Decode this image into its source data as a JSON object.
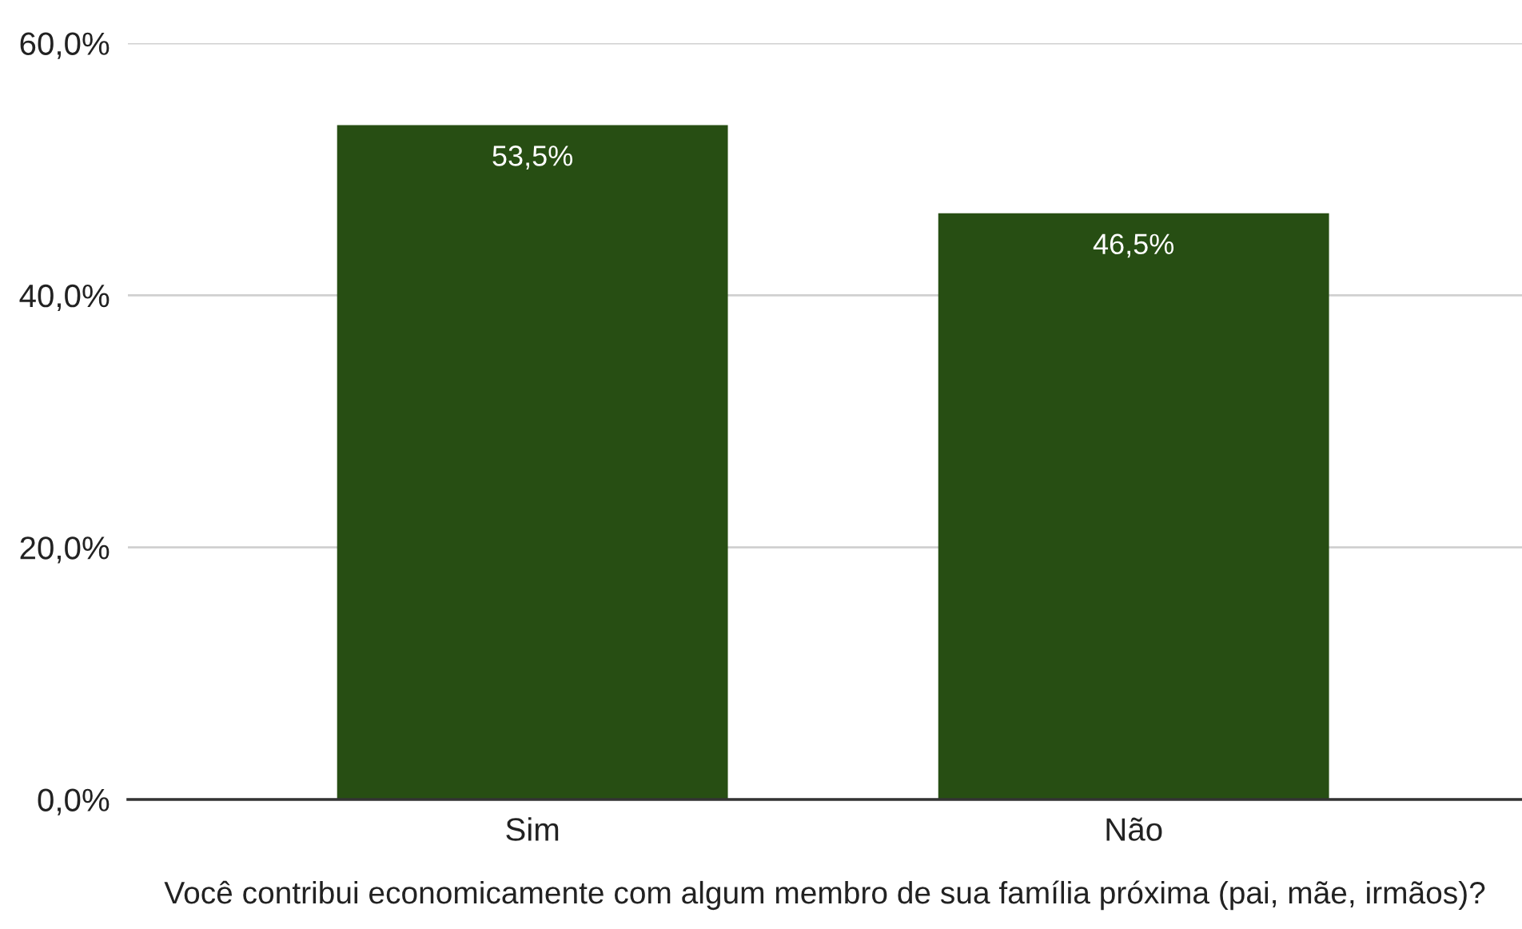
{
  "chart_data": {
    "type": "bar",
    "xlabel": "Você contribui economicamente com algum membro de sua família próxima (pai, mãe, irmãos)?",
    "categories": [
      "Sim",
      "Não"
    ],
    "values": [
      53.5,
      46.5
    ],
    "value_labels": [
      "53,5%",
      "46,5%"
    ],
    "color": "#274e13",
    "ylim": [
      0,
      60
    ],
    "yticks": [
      {
        "value": 0,
        "label": "0,0%"
      },
      {
        "value": 20,
        "label": "20,0%"
      },
      {
        "value": 40,
        "label": "40,0%"
      },
      {
        "value": 60,
        "label": "60,0%"
      }
    ],
    "grid": "y"
  }
}
